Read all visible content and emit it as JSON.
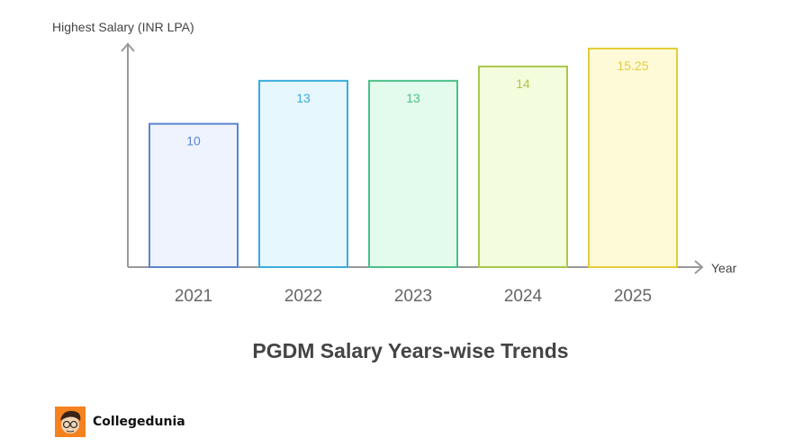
{
  "chart_data": {
    "type": "bar",
    "title": "PGDM Salary Years-wise Trends",
    "xlabel": "Year",
    "ylabel": "Highest Salary (INR LPA)",
    "categories": [
      "2021",
      "2022",
      "2023",
      "2024",
      "2025"
    ],
    "values": [
      10,
      13,
      13,
      14,
      15.25
    ],
    "value_labels": [
      "10",
      "13",
      "13",
      "14",
      "15.25"
    ],
    "ylim": [
      0,
      15.5
    ],
    "grid": false,
    "colors": {
      "stroke": [
        "#5b85d0",
        "#3aacdc",
        "#4cc08a",
        "#a8c84a",
        "#e3cc3c"
      ],
      "fill": [
        "#eef3fd",
        "#e6f7fe",
        "#e3fbec",
        "#f3fcdc",
        "#fefad7"
      ],
      "axis": "#999999"
    }
  },
  "brand": {
    "name": "Collegedunia",
    "accent": "#f5821f"
  }
}
